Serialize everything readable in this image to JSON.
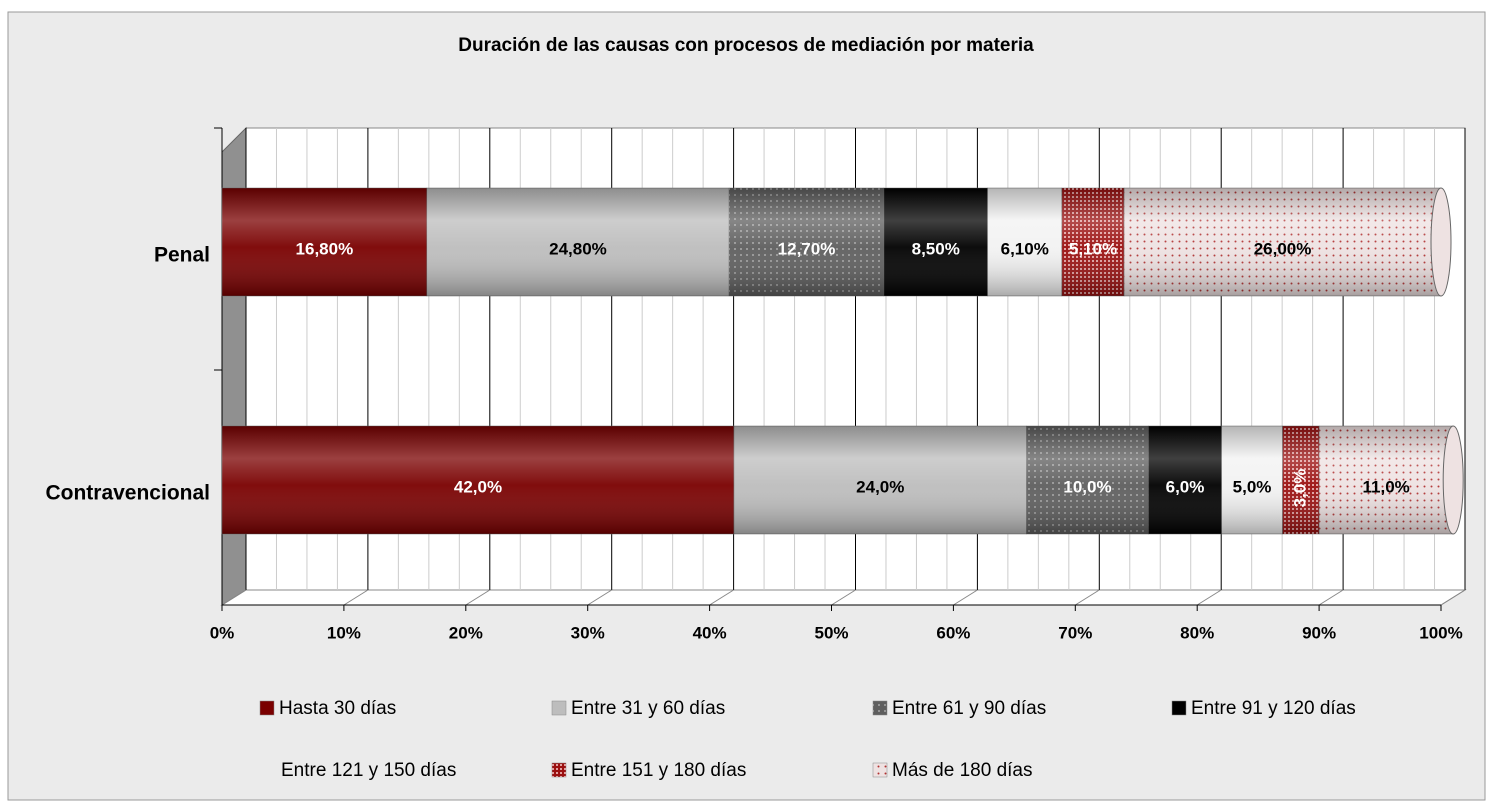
{
  "chart_data": {
    "type": "stacked_barh",
    "title": "Duración de las causas con procesos de mediación por materia",
    "categories": [
      "Penal",
      "Contravencional"
    ],
    "series": [
      {
        "name": "Hasta 30 días",
        "color": "#7a0000",
        "values": [
          16.8,
          42.0
        ],
        "value_labels": [
          "16,80%",
          "42,0%"
        ]
      },
      {
        "name": "Entre 31 y 60 días",
        "color": "#bdbdbd",
        "values": [
          24.8,
          24.0
        ],
        "value_labels": [
          "24,80%",
          "24,0%"
        ]
      },
      {
        "name": "Entre 61 y 90 días",
        "color": "#5e5e5e",
        "values": [
          12.7,
          10.0
        ],
        "value_labels": [
          "12,70%",
          "10,0%"
        ]
      },
      {
        "name": "Entre 91 y 120 días",
        "color": "#000000",
        "values": [
          8.5,
          6.0
        ],
        "value_labels": [
          "8,50%",
          "6,0%"
        ]
      },
      {
        "name": "Entre 121 y 150 días",
        "color": "#f2f2f2",
        "values": [
          6.1,
          5.0
        ],
        "value_labels": [
          "6,10%",
          "5,0%"
        ]
      },
      {
        "name": "Entre 151 y 180 días",
        "color": "#9b1010",
        "values": [
          5.1,
          3.0
        ],
        "value_labels": [
          "5,10%",
          "3,0%"
        ]
      },
      {
        "name": "Más de 180 días",
        "color": "#eee2e2",
        "values": [
          26.0,
          11.0
        ],
        "value_labels": [
          "26,00%",
          "11,0%"
        ]
      }
    ],
    "xlim": [
      0,
      100
    ],
    "xticks": [
      {
        "value": 0,
        "label": "0%"
      },
      {
        "value": 10,
        "label": "10%"
      },
      {
        "value": 20,
        "label": "20%"
      },
      {
        "value": 30,
        "label": "30%"
      },
      {
        "value": 40,
        "label": "40%"
      },
      {
        "value": 50,
        "label": "50%"
      },
      {
        "value": 60,
        "label": "60%"
      },
      {
        "value": 70,
        "label": "70%"
      },
      {
        "value": 80,
        "label": "80%"
      },
      {
        "value": 90,
        "label": "90%"
      },
      {
        "value": 100,
        "label": "100%"
      }
    ],
    "grid": true,
    "legend": "bottom"
  }
}
